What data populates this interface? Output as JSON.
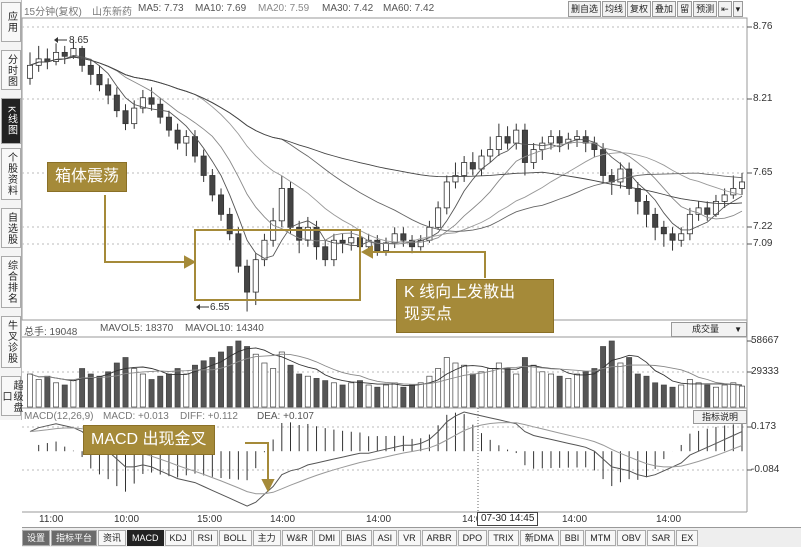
{
  "nav": {
    "items": [
      {
        "label": "应用"
      },
      {
        "label": "分时图"
      },
      {
        "label": "K线图"
      },
      {
        "label": "个股资料"
      },
      {
        "label": "自选股"
      },
      {
        "label": "综合排名"
      },
      {
        "label": "牛叉诊股"
      },
      {
        "label": "超级盘口"
      }
    ]
  },
  "header": {
    "period": "15分钟(复权)",
    "stock_name": "山东新药",
    "ma5": "MA5: 7.73",
    "ma10": "MA10: 7.69",
    "ma20": "MA20: 7.59",
    "ma30": "MA30: 7.42",
    "ma60": "MA60: 7.42"
  },
  "toolbar": [
    "删自选",
    "均线",
    "复权",
    "叠加",
    "留",
    "预测",
    "⇤",
    "▾"
  ],
  "price_axis": [
    "8.76",
    "8.21",
    "7.65",
    "7.22",
    "7.09"
  ],
  "price_marks": {
    "high": "8.65",
    "low": "6.55"
  },
  "volume": {
    "total": "总手: 19048",
    "mavol5": "MAVOL5: 18370",
    "mavol10": "MAVOL10: 14340",
    "selector": "成交量",
    "axis": [
      "58667",
      "29333"
    ]
  },
  "macd": {
    "title": "MACD(12,26,9)",
    "macd": "MACD: +0.013",
    "diff": "DIFF: +0.112",
    "dea": "DEA: +0.107",
    "button": "指标说明",
    "axis": [
      "0.173",
      "-0.084"
    ]
  },
  "annotations": {
    "box": "箱体震荡",
    "breakout_line1": "K 线向上发散出",
    "breakout_line2": "现买点",
    "macd_cross": "MACD 出现金叉"
  },
  "time_axis": [
    "11:00",
    "10:00",
    "15:00",
    "14:00",
    "14:00",
    "14:00",
    "14:00",
    "14:00"
  ],
  "time_cursor": "07-30 14:45",
  "tabs": [
    "设置",
    "指标平台",
    "资讯",
    "MACD",
    "KDJ",
    "RSI",
    "BOLL",
    "主力",
    "W&R",
    "DMI",
    "BIAS",
    "ASI",
    "VR",
    "ARBR",
    "DPO",
    "TRIX",
    "新DMA",
    "BBI",
    "MTM",
    "OBV",
    "SAR",
    "EX"
  ],
  "chart_data": {
    "type": "candlestick",
    "price": {
      "candles": [
        [
          8.35,
          8.45,
          8.55,
          8.3
        ],
        [
          8.45,
          8.5,
          8.6,
          8.4
        ],
        [
          8.5,
          8.48,
          8.58,
          8.42
        ],
        [
          8.48,
          8.55,
          8.62,
          8.45
        ],
        [
          8.55,
          8.52,
          8.6,
          8.46
        ],
        [
          8.52,
          8.58,
          8.65,
          8.5
        ],
        [
          8.58,
          8.45,
          8.6,
          8.4
        ],
        [
          8.45,
          8.38,
          8.5,
          8.3
        ],
        [
          8.38,
          8.3,
          8.45,
          8.25
        ],
        [
          8.3,
          8.22,
          8.35,
          8.15
        ],
        [
          8.22,
          8.1,
          8.28,
          8.05
        ],
        [
          8.1,
          8.0,
          8.15,
          7.95
        ],
        [
          8.0,
          8.12,
          8.18,
          7.96
        ],
        [
          8.12,
          8.2,
          8.26,
          8.08
        ],
        [
          8.2,
          8.15,
          8.28,
          8.1
        ],
        [
          8.15,
          8.05,
          8.2,
          8.0
        ],
        [
          8.05,
          7.95,
          8.1,
          7.9
        ],
        [
          7.95,
          7.85,
          8.0,
          7.8
        ],
        [
          7.85,
          7.9,
          7.95,
          7.75
        ],
        [
          7.9,
          7.75,
          7.95,
          7.7
        ],
        [
          7.75,
          7.6,
          7.8,
          7.55
        ],
        [
          7.6,
          7.45,
          7.65,
          7.4
        ],
        [
          7.45,
          7.3,
          7.5,
          7.25
        ],
        [
          7.3,
          7.15,
          7.35,
          7.1
        ],
        [
          7.15,
          6.9,
          7.2,
          6.85
        ],
        [
          6.9,
          6.7,
          6.95,
          6.55
        ],
        [
          6.7,
          6.95,
          7.0,
          6.6
        ],
        [
          6.95,
          7.1,
          7.15,
          6.9
        ],
        [
          7.1,
          7.25,
          7.35,
          7.05
        ],
        [
          7.25,
          7.5,
          7.6,
          7.2
        ],
        [
          7.5,
          7.2,
          7.55,
          7.15
        ],
        [
          7.2,
          7.1,
          7.25,
          7.0
        ],
        [
          7.1,
          7.2,
          7.28,
          7.05
        ],
        [
          7.2,
          7.05,
          7.25,
          6.95
        ],
        [
          7.05,
          6.95,
          7.1,
          6.9
        ],
        [
          6.95,
          7.1,
          7.15,
          6.9
        ],
        [
          7.1,
          7.08,
          7.15,
          7.0
        ],
        [
          7.08,
          7.12,
          7.18,
          7.02
        ],
        [
          7.12,
          7.05,
          7.16,
          7.0
        ],
        [
          7.05,
          7.1,
          7.15,
          7.0
        ],
        [
          7.1,
          7.02,
          7.14,
          6.98
        ],
        [
          7.02,
          7.08,
          7.12,
          6.98
        ],
        [
          7.08,
          7.15,
          7.2,
          7.04
        ],
        [
          7.15,
          7.1,
          7.2,
          7.05
        ],
        [
          7.1,
          7.05,
          7.14,
          7.0
        ],
        [
          7.05,
          7.1,
          7.14,
          7.02
        ],
        [
          7.1,
          7.2,
          7.25,
          7.08
        ],
        [
          7.2,
          7.35,
          7.4,
          7.18
        ],
        [
          7.35,
          7.55,
          7.6,
          7.3
        ],
        [
          7.55,
          7.6,
          7.7,
          7.5
        ],
        [
          7.6,
          7.7,
          7.75,
          7.55
        ],
        [
          7.7,
          7.65,
          7.78,
          7.6
        ],
        [
          7.65,
          7.75,
          7.8,
          7.6
        ],
        [
          7.75,
          7.8,
          7.9,
          7.7
        ],
        [
          7.8,
          7.9,
          8.0,
          7.75
        ],
        [
          7.9,
          7.85,
          7.98,
          7.8
        ],
        [
          7.85,
          7.95,
          8.0,
          7.8
        ],
        [
          7.95,
          7.7,
          8.0,
          7.6
        ],
        [
          7.7,
          7.8,
          7.85,
          7.65
        ],
        [
          7.8,
          7.85,
          7.9,
          7.72
        ],
        [
          7.85,
          7.9,
          7.95,
          7.8
        ],
        [
          7.9,
          7.85,
          7.95,
          7.78
        ],
        [
          7.85,
          7.88,
          7.93,
          7.8
        ],
        [
          7.88,
          7.9,
          7.95,
          7.82
        ],
        [
          7.9,
          7.85,
          7.95,
          7.78
        ],
        [
          7.85,
          7.8,
          7.9,
          7.74
        ],
        [
          7.8,
          7.6,
          7.85,
          7.55
        ],
        [
          7.6,
          7.55,
          7.65,
          7.45
        ],
        [
          7.55,
          7.65,
          7.7,
          7.5
        ],
        [
          7.65,
          7.5,
          7.7,
          7.45
        ],
        [
          7.5,
          7.4,
          7.55,
          7.3
        ],
        [
          7.4,
          7.3,
          7.45,
          7.2
        ],
        [
          7.3,
          7.2,
          7.35,
          7.1
        ],
        [
          7.2,
          7.15,
          7.25,
          7.05
        ],
        [
          7.15,
          7.1,
          7.2,
          7.02
        ],
        [
          7.1,
          7.15,
          7.2,
          7.05
        ],
        [
          7.15,
          7.3,
          7.35,
          7.1
        ],
        [
          7.3,
          7.35,
          7.4,
          7.25
        ],
        [
          7.35,
          7.3,
          7.4,
          7.25
        ],
        [
          7.3,
          7.4,
          7.45,
          7.28
        ],
        [
          7.4,
          7.45,
          7.5,
          7.35
        ],
        [
          7.45,
          7.5,
          7.6,
          7.42
        ],
        [
          7.5,
          7.55,
          7.62,
          7.45
        ]
      ],
      "ymin": 6.5,
      "ymax": 8.8
    },
    "volume_values": [
      30,
      25,
      28,
      22,
      20,
      24,
      35,
      30,
      28,
      32,
      40,
      45,
      35,
      30,
      25,
      28,
      30,
      35,
      30,
      38,
      42,
      45,
      50,
      55,
      60,
      55,
      48,
      40,
      35,
      50,
      38,
      30,
      28,
      26,
      24,
      22,
      20,
      22,
      24,
      20,
      18,
      20,
      22,
      18,
      20,
      22,
      28,
      35,
      45,
      40,
      38,
      30,
      32,
      35,
      40,
      35,
      30,
      45,
      38,
      32,
      30,
      28,
      26,
      30,
      32,
      35,
      55,
      60,
      40,
      45,
      30,
      28,
      22,
      20,
      18,
      20,
      25,
      22,
      20,
      18,
      20,
      22,
      19
    ],
    "volume_ymax": 60,
    "macd_values": [
      0.1,
      0.12,
      0.13,
      0.14,
      0.13,
      0.12,
      0.1,
      0.06,
      0.03,
      0.0,
      -0.04,
      -0.08,
      -0.08,
      -0.07,
      -0.08,
      -0.1,
      -0.12,
      -0.14,
      -0.15,
      -0.16,
      -0.18,
      -0.2,
      -0.22,
      -0.24,
      -0.26,
      -0.28,
      -0.26,
      -0.22,
      -0.18,
      -0.12,
      -0.1,
      -0.09,
      -0.07,
      -0.06,
      -0.05,
      -0.04,
      -0.03,
      -0.02,
      -0.01,
      -0.01,
      0.0,
      0.01,
      0.02,
      0.03,
      0.03,
      0.04,
      0.06,
      0.1,
      0.15,
      0.18,
      0.2,
      0.19,
      0.18,
      0.17,
      0.16,
      0.15,
      0.14,
      0.1,
      0.08,
      0.07,
      0.06,
      0.05,
      0.04,
      0.03,
      0.02,
      0.0,
      -0.04,
      -0.08,
      -0.09,
      -0.1,
      -0.12,
      -0.13,
      -0.12,
      -0.1,
      -0.08,
      -0.06,
      -0.02,
      0.0,
      0.02,
      0.04,
      0.06,
      0.08,
      0.1
    ],
    "macd_range": [
      -0.3,
      0.2
    ]
  }
}
